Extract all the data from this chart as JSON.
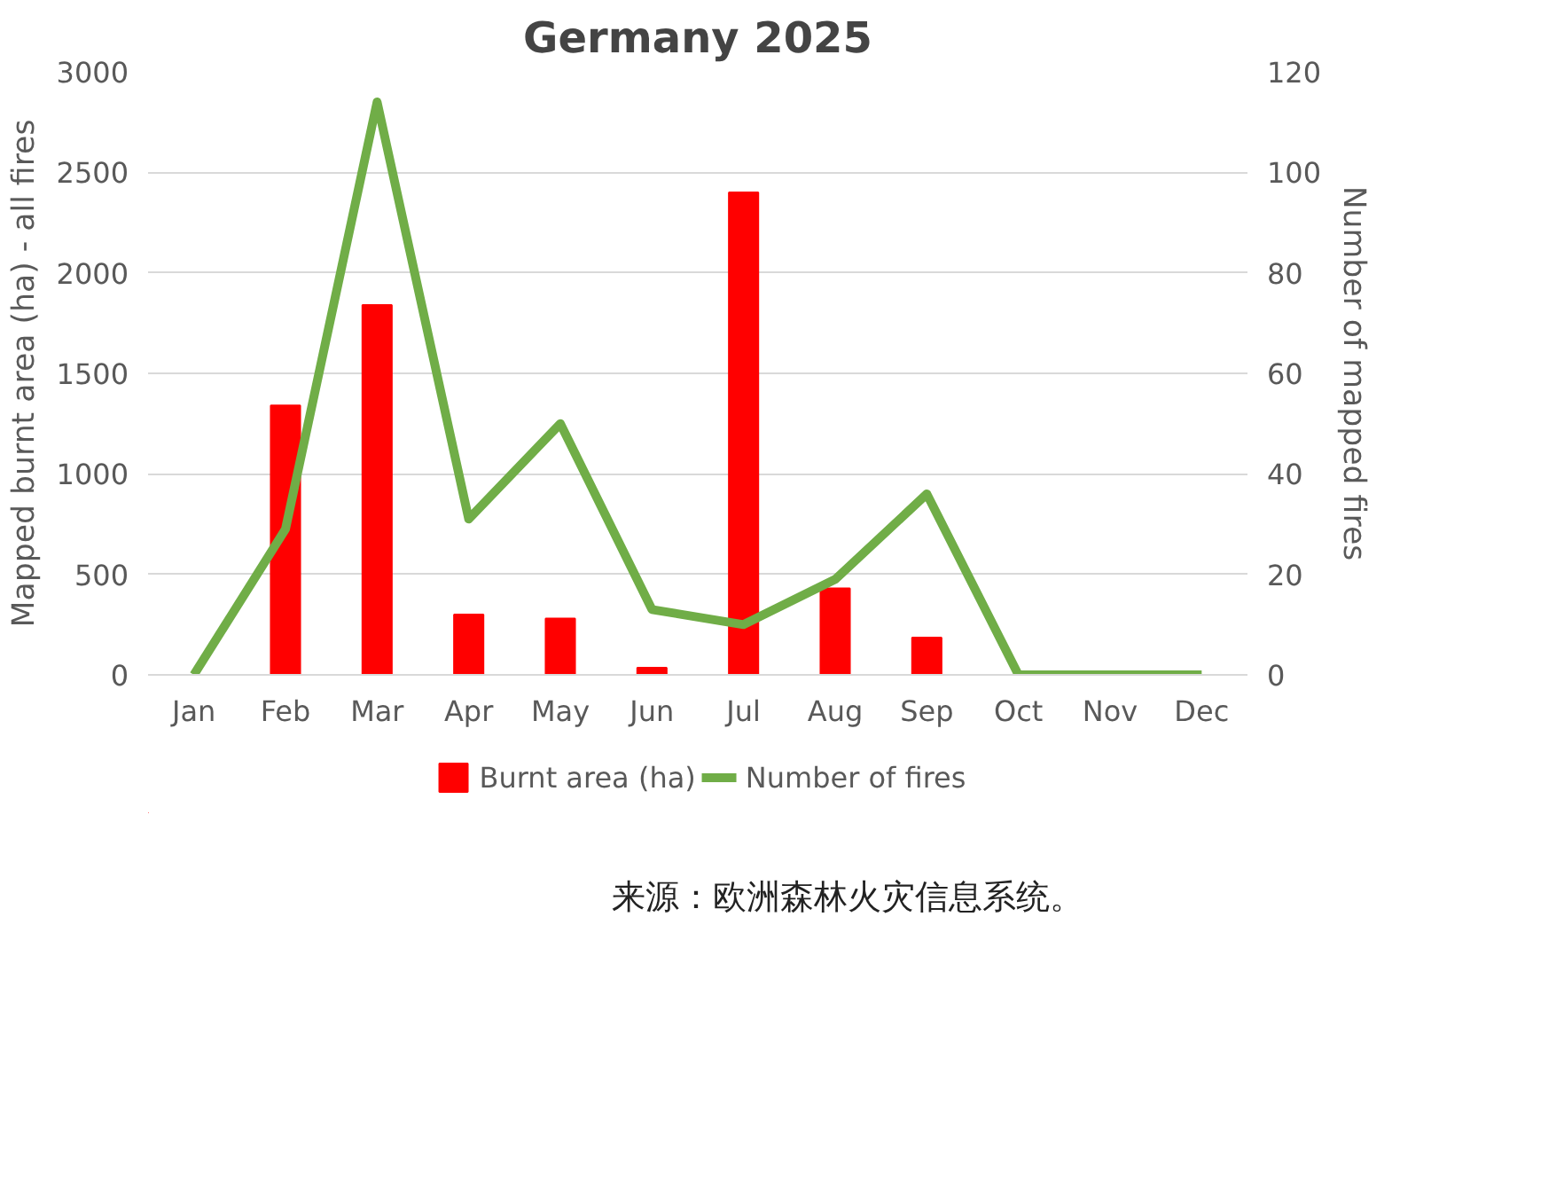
{
  "chart_data": {
    "type": "bar",
    "title": "Germany 2025",
    "ylabel": "Mapped burnt area (ha) - all fires",
    "y2label": "Number of mapped fires",
    "categories": [
      "Jan",
      "Feb",
      "Mar",
      "Apr",
      "May",
      "Jun",
      "Jul",
      "Aug",
      "Sep",
      "Oct",
      "Nov",
      "Dec"
    ],
    "series": [
      {
        "name": "Burnt area (ha)",
        "color": "#ff0000",
        "values": [
          0,
          1340,
          1840,
          300,
          280,
          35,
          2400,
          430,
          185,
          0,
          0,
          0
        ]
      },
      {
        "name": "Number of fires",
        "type": "line",
        "axis": "y2",
        "color": "#70ad47",
        "values": [
          0,
          29,
          114,
          31,
          50,
          13,
          10,
          19,
          36,
          0,
          0,
          0
        ]
      }
    ],
    "ylim": [
      0,
      3000
    ],
    "yticks": [
      0,
      500,
      1000,
      1500,
      2000,
      2500,
      3000
    ],
    "y2lim": [
      0,
      120
    ],
    "y2ticks": [
      0,
      20,
      40,
      60,
      80,
      100,
      120
    ],
    "grid": "y",
    "legend": "bottom",
    "marker": "none",
    "line_style": "solid",
    "annotations": [
      "来源：欧洲森林火灾信息系统。"
    ]
  }
}
